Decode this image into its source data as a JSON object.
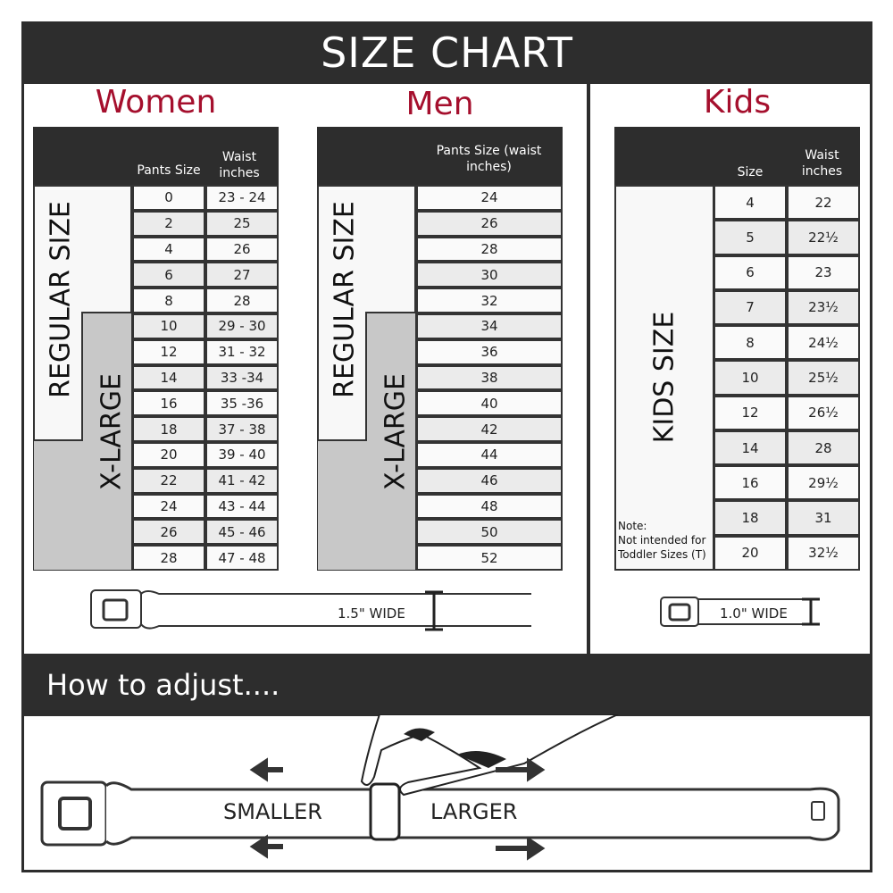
{
  "title": "SIZE CHART",
  "women": {
    "title": "Women",
    "col_pants": "Pants Size",
    "col_waist": "Waist inches",
    "regular_label": "REGULAR SIZE",
    "xlarge_label": "X-LARGE",
    "rows": [
      [
        "0",
        "23 - 24"
      ],
      [
        "2",
        "25"
      ],
      [
        "4",
        "26"
      ],
      [
        "6",
        "27"
      ],
      [
        "8",
        "28"
      ],
      [
        "10",
        "29 - 30"
      ],
      [
        "12",
        "31 - 32"
      ],
      [
        "14",
        "33 -34"
      ],
      [
        "16",
        "35 -36"
      ],
      [
        "18",
        "37 - 38"
      ],
      [
        "20",
        "39 - 40"
      ],
      [
        "22",
        "41 - 42"
      ],
      [
        "24",
        "43 - 44"
      ],
      [
        "26",
        "45 - 46"
      ],
      [
        "28",
        "47 - 48"
      ]
    ],
    "belt_label": "1.5\" WIDE"
  },
  "men": {
    "title": "Men",
    "col_pants": "Pants Size (waist inches)",
    "regular_label": "REGULAR SIZE",
    "xlarge_label": "X-LARGE",
    "rows": [
      "24",
      "26",
      "28",
      "30",
      "32",
      "34",
      "36",
      "38",
      "40",
      "42",
      "44",
      "46",
      "48",
      "50",
      "52"
    ]
  },
  "kids": {
    "title": "Kids",
    "col_size": "Size",
    "col_waist": "Waist inches",
    "label": "KIDS SIZE",
    "note_title": "Note:",
    "note_line1": "Not intended for",
    "note_line2": "Toddler Sizes (T)",
    "rows": [
      [
        "4",
        "22"
      ],
      [
        "5",
        "22½"
      ],
      [
        "6",
        "23"
      ],
      [
        "7",
        "23½"
      ],
      [
        "8",
        "24½"
      ],
      [
        "10",
        "25½"
      ],
      [
        "12",
        "26½"
      ],
      [
        "14",
        "28"
      ],
      [
        "16",
        "29½"
      ],
      [
        "18",
        "31"
      ],
      [
        "20",
        "32½"
      ]
    ],
    "belt_label": "1.0\" WIDE"
  },
  "adjust": {
    "title": "How to adjust....",
    "smaller": "SMALLER",
    "larger": "LARGER"
  },
  "colors": {
    "header": "#2d2d2d",
    "accent": "#a50f2d",
    "xlarge_fill": "#c8c8c8",
    "row_alt": "#ebebeb"
  }
}
